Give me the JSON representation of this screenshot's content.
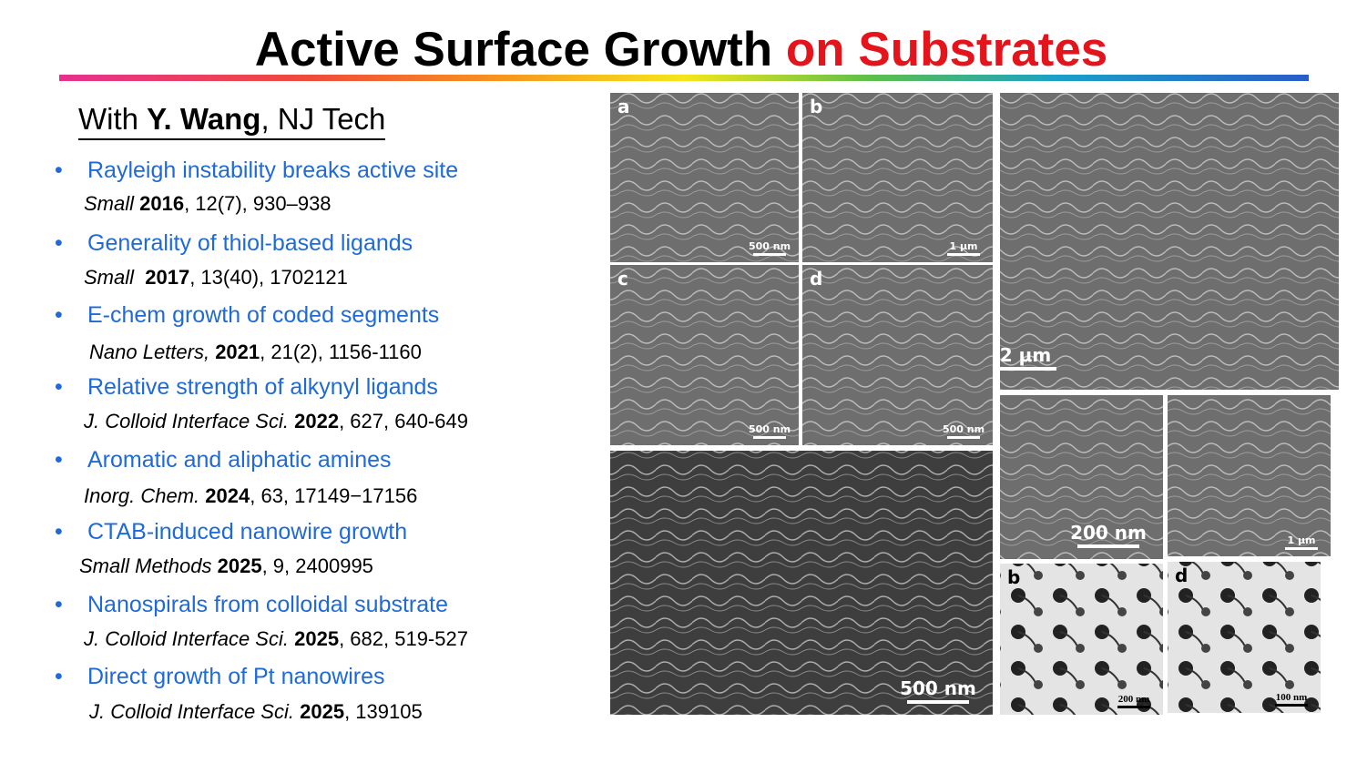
{
  "title": {
    "main": "Active Surface Growth",
    "highlight": "on Substrates"
  },
  "subtitle": {
    "prefix": "With ",
    "name": "Y. Wang",
    "suffix": ", NJ Tech"
  },
  "items": [
    {
      "heading": "Rayleigh instability breaks active site",
      "journal": "Small ",
      "year": "2016",
      "rest": ", 12(7), 930–938"
    },
    {
      "heading": "Generality of thiol-based ligands",
      "journal": "Small  ",
      "year": "2017",
      "rest": ", 13(40), 1702121"
    },
    {
      "heading": "E-chem growth of coded segments",
      "journal": "Nano Letters, ",
      "year": "2021",
      "rest": ", 21(2), 1156-1160"
    },
    {
      "heading": "Relative strength of alkynyl ligands",
      "journal": "J. Colloid Interface Sci. ",
      "year": "2022",
      "rest": ", 627, 640-649"
    },
    {
      "heading": "Aromatic and aliphatic amines",
      "journal": "Inorg. Chem. ",
      "year": "2024",
      "rest": ", 63, 17149−17156"
    },
    {
      "heading": "CTAB-induced nanowire growth",
      "journal": "Small Methods ",
      "year": "2025",
      "rest": ", 9, 2400995"
    },
    {
      "heading": "Nanospirals from colloidal substrate",
      "journal": "J. Colloid Interface Sci. ",
      "year": "2025",
      "rest": ", 682, 519-527"
    },
    {
      "heading": "Direct growth of Pt nanowires",
      "journal": "J. Colloid Interface Sci. ",
      "year": "2025",
      "rest": ", 139105"
    }
  ],
  "panels": [
    {
      "letter": "a",
      "scale": "500 nm"
    },
    {
      "letter": "b",
      "scale": "1 μm"
    },
    {
      "letter": "c",
      "scale": "500 nm"
    },
    {
      "letter": "d",
      "scale": "500 nm"
    },
    {
      "scale": "500 nm"
    },
    {
      "scale": "2 μm"
    },
    {
      "scale": "200 nm"
    },
    {
      "scale": "1 μm"
    },
    {
      "letter": "b",
      "scale": "200 nm"
    },
    {
      "letter": "d",
      "scale": "100 nm"
    }
  ]
}
